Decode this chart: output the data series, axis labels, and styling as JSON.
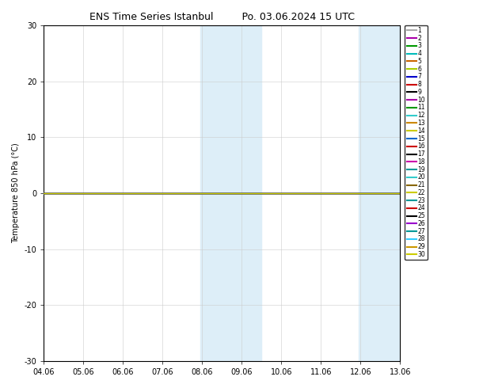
{
  "title_left": "ENS Time Series Istanbul",
  "title_right": "Po. 03.06.2024 15 UTC",
  "ylabel": "Temperature 850 hPa (°C)",
  "ylim": [
    -30,
    30
  ],
  "yticks": [
    -30,
    -20,
    -10,
    0,
    10,
    20,
    30
  ],
  "x_tick_labels": [
    "04.06",
    "05.06",
    "06.06",
    "07.06",
    "08.06",
    "09.06",
    "10.06",
    "11.06",
    "12.06",
    "13.06"
  ],
  "x_tick_positions": [
    0,
    1,
    2,
    3,
    4,
    5,
    6,
    7,
    8,
    9
  ],
  "x_min": 0,
  "x_max": 9,
  "shaded_bands": [
    [
      3.95,
      4.55
    ],
    [
      4.55,
      5.5
    ],
    [
      7.95,
      8.5
    ],
    [
      8.5,
      9.05
    ]
  ],
  "shaded_color": "#ddeef8",
  "background_color": "#ffffff",
  "grid_color": "#cccccc",
  "member_colors": [
    "#aaaaaa",
    "#aa00aa",
    "#009900",
    "#00bbbb",
    "#cc6600",
    "#aacc00",
    "#0000cc",
    "#cc0000",
    "#000000",
    "#aa00aa",
    "#009900",
    "#33cccc",
    "#cc8800",
    "#cccc00",
    "#0066cc",
    "#cc0000",
    "#000000",
    "#cc00aa",
    "#009999",
    "#33cccc",
    "#886600",
    "#cccc00",
    "#009999",
    "#cc0000",
    "#000000",
    "#9900cc",
    "#009999",
    "#33ccff",
    "#cc9900",
    "#cccc00"
  ],
  "n_members": 30,
  "line_y": 0.0,
  "line_width": 0.8,
  "title_fontsize": 9,
  "axis_fontsize": 7,
  "legend_fontsize": 5.5
}
